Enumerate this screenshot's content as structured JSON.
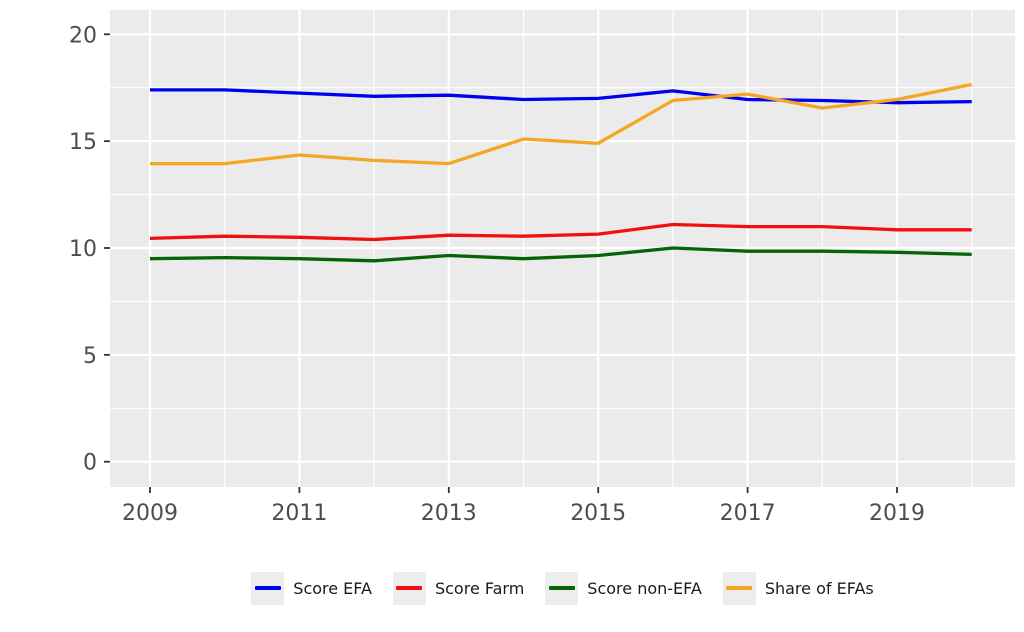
{
  "chart_data": {
    "type": "line",
    "title": "",
    "xlabel": "",
    "ylabel": "",
    "x": [
      2009,
      2010,
      2011,
      2012,
      2013,
      2014,
      2015,
      2016,
      2017,
      2018,
      2019,
      2020
    ],
    "series": [
      {
        "name": "Score EFA",
        "color": "#0000f0",
        "values": [
          17.4,
          17.4,
          17.25,
          17.1,
          17.15,
          16.95,
          17.0,
          17.35,
          16.95,
          16.9,
          16.8,
          16.85
        ]
      },
      {
        "name": "Score Farm",
        "color": "#f01010",
        "values": [
          10.45,
          10.55,
          10.5,
          10.4,
          10.6,
          10.55,
          10.65,
          11.1,
          11.0,
          11.0,
          10.85,
          10.85
        ]
      },
      {
        "name": "Score non-EFA",
        "color": "#066406",
        "values": [
          9.5,
          9.55,
          9.5,
          9.4,
          9.65,
          9.5,
          9.65,
          10.0,
          9.85,
          9.85,
          9.8,
          9.7
        ]
      },
      {
        "name": "Share of EFAs",
        "color": "#f5a623",
        "values": [
          13.95,
          13.95,
          14.35,
          14.1,
          13.95,
          15.1,
          14.9,
          16.9,
          17.2,
          16.55,
          16.95,
          17.65
        ]
      }
    ],
    "x_ticks": [
      2009,
      2011,
      2013,
      2015,
      2017,
      2019
    ],
    "x_minor": [
      2010,
      2012,
      2014,
      2016,
      2018,
      2020
    ],
    "y_ticks": [
      0,
      5,
      10,
      15,
      20
    ],
    "y_minor": [
      2.5,
      7.5,
      12.5,
      17.5
    ],
    "ylim": [
      0,
      20
    ],
    "grid": true,
    "legend_position": "bottom",
    "panel_bg": "#ebebeb",
    "grid_color": "#ffffff",
    "axis_text_color": "#4d4d4d",
    "tick_color": "#333333"
  }
}
